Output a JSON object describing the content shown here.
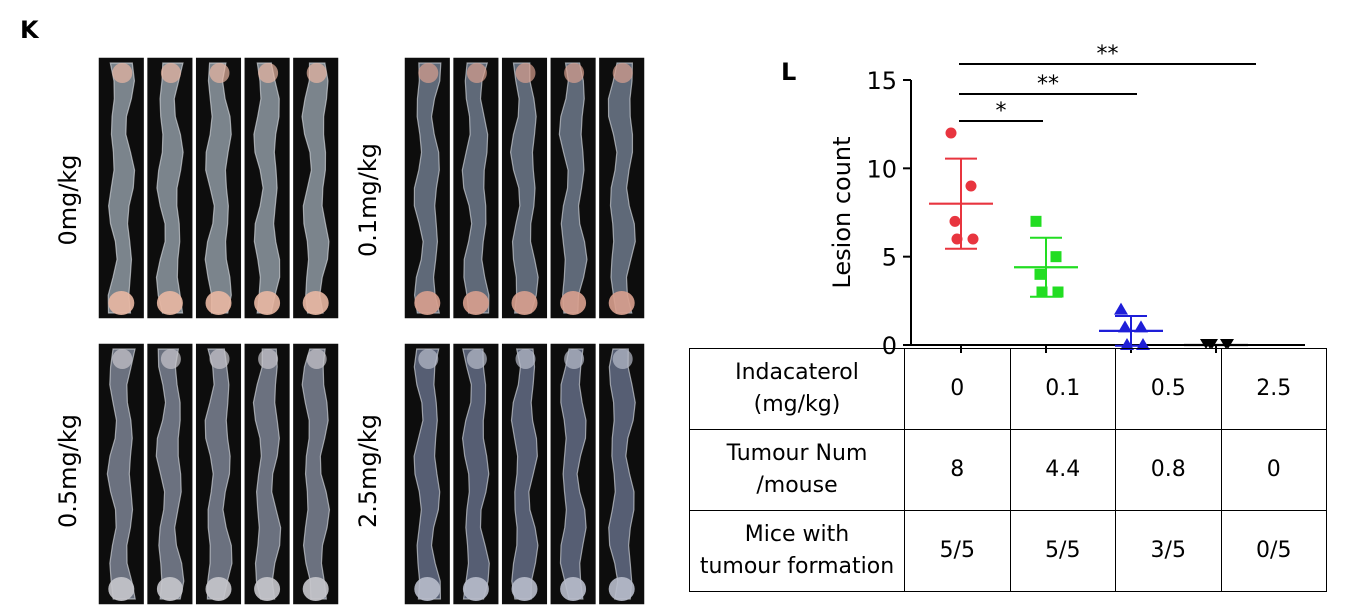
{
  "panels": {
    "k_label": "K",
    "l_label": "L"
  },
  "photo_groups": [
    {
      "label": "0mg/kg",
      "strips": 5,
      "tint": "#8f9aa3",
      "tissue": "#e9b7a2"
    },
    {
      "label": "0.1mg/kg",
      "strips": 5,
      "tint": "#6f7a8c",
      "tissue": "#d9a08e"
    },
    {
      "label": "0.5mg/kg",
      "strips": 5,
      "tint": "#7c8494",
      "tissue": "#c7c6cc"
    },
    {
      "label": "2.5mg/kg",
      "strips": 5,
      "tint": "#646d86",
      "tissue": "#b8bccb"
    }
  ],
  "chart_data": {
    "type": "scatter",
    "ylabel": "Lesion count",
    "ylim": [
      0,
      15
    ],
    "yticks": [
      "0",
      "5",
      "10",
      "15"
    ],
    "groups": [
      {
        "dose": "0",
        "color": "#e8353f",
        "marker": "circle",
        "mean": 8,
        "sd": 2.55,
        "points": [
          12,
          9,
          7,
          6,
          6
        ]
      },
      {
        "dose": "0.1",
        "color": "#22dd22",
        "marker": "square",
        "mean": 4.4,
        "sd": 1.67,
        "points": [
          7,
          5,
          4,
          3,
          3
        ]
      },
      {
        "dose": "0.5",
        "color": "#1e1ed8",
        "marker": "triangle",
        "mean": 0.8,
        "sd": 0.84,
        "points": [
          2,
          1,
          1,
          0,
          0
        ]
      },
      {
        "dose": "2.5",
        "color": "#000000",
        "marker": "triangle-down",
        "mean": 0,
        "sd": 0,
        "points": [
          0,
          0,
          0,
          0,
          0
        ]
      }
    ],
    "significance": [
      {
        "from": "0",
        "to": "0.1",
        "label": "*"
      },
      {
        "from": "0",
        "to": "0.5",
        "label": "**"
      },
      {
        "from": "0",
        "to": "2.5",
        "label": "**"
      }
    ]
  },
  "table": {
    "rows": [
      {
        "header": [
          "Indacaterol",
          "(mg/kg)"
        ],
        "values": [
          "0",
          "0.1",
          "0.5",
          "2.5"
        ]
      },
      {
        "header": [
          "Tumour Num",
          "/mouse"
        ],
        "values": [
          "8",
          "4.4",
          "0.8",
          "0"
        ]
      },
      {
        "header": [
          "Mice with",
          "tumour formation"
        ],
        "values": [
          "5/5",
          "5/5",
          "3/5",
          "0/5"
        ]
      }
    ]
  }
}
